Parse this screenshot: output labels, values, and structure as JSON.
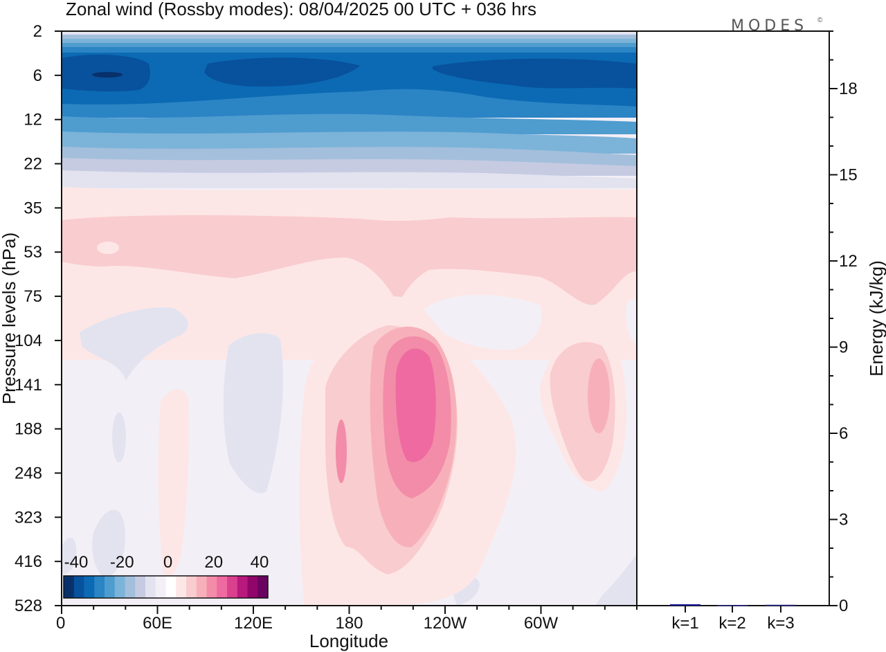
{
  "title": "Zonal wind (Rossby modes):  08/04/2025  00 UTC  + 036 hrs",
  "logo": {
    "text": "MODES",
    "mark": "©"
  },
  "chart_data": [
    {
      "type": "heatmap",
      "title": "Zonal wind (Rossby modes):  08/04/2025  00 UTC  + 036 hrs",
      "xlabel": "Longitude",
      "ylabel": "Pressure levels (hPa)",
      "x_ticks": [
        "0",
        "60E",
        "120E",
        "180",
        "120W",
        "60W"
      ],
      "x_tick_degrees": [
        0,
        60,
        120,
        180,
        240,
        300
      ],
      "xlim": [
        0,
        360
      ],
      "y_levels": [
        2,
        6,
        12,
        22,
        35,
        53,
        75,
        104,
        141,
        188,
        248,
        323,
        416,
        528
      ],
      "colorbar": {
        "tick_labels": [
          "-40",
          "-20",
          "0",
          "20",
          "40"
        ],
        "colors": [
          "#08306b",
          "#08519c",
          "#0b6ab3",
          "#2b84c4",
          "#4f9ccf",
          "#7cb3d9",
          "#a3bfdc",
          "#c6cbe2",
          "#e3e3f0",
          "#f3eff6",
          "#ffffff",
          "#fde7e6",
          "#f9cccf",
          "#f7b0ba",
          "#f28ca8",
          "#ee6aa0",
          "#d9418f",
          "#b8197c",
          "#90066b",
          "#6a0460"
        ]
      },
      "features": [
        {
          "kind": "easterly max",
          "level_hpa": 6,
          "value": -40
        },
        {
          "kind": "westerly jet core",
          "lon_deg": 222,
          "level_hpa": 180,
          "value": 30
        },
        {
          "kind": "westerly max",
          "lon_deg": 340,
          "level_hpa": 160,
          "value": 15
        }
      ]
    },
    {
      "type": "bar",
      "ylabel": "Energy (kJ/kg)",
      "categories": [
        "k=1",
        "k=2",
        "k=3"
      ],
      "values": [
        0.05,
        0.02,
        0.03
      ],
      "ylim": [
        0,
        20
      ],
      "y_ticks": [
        0,
        3,
        6,
        9,
        12,
        15,
        18
      ],
      "bar_colors": [
        "#1f1fa0",
        "#2a2a8c",
        "#2a2a8c"
      ]
    }
  ]
}
